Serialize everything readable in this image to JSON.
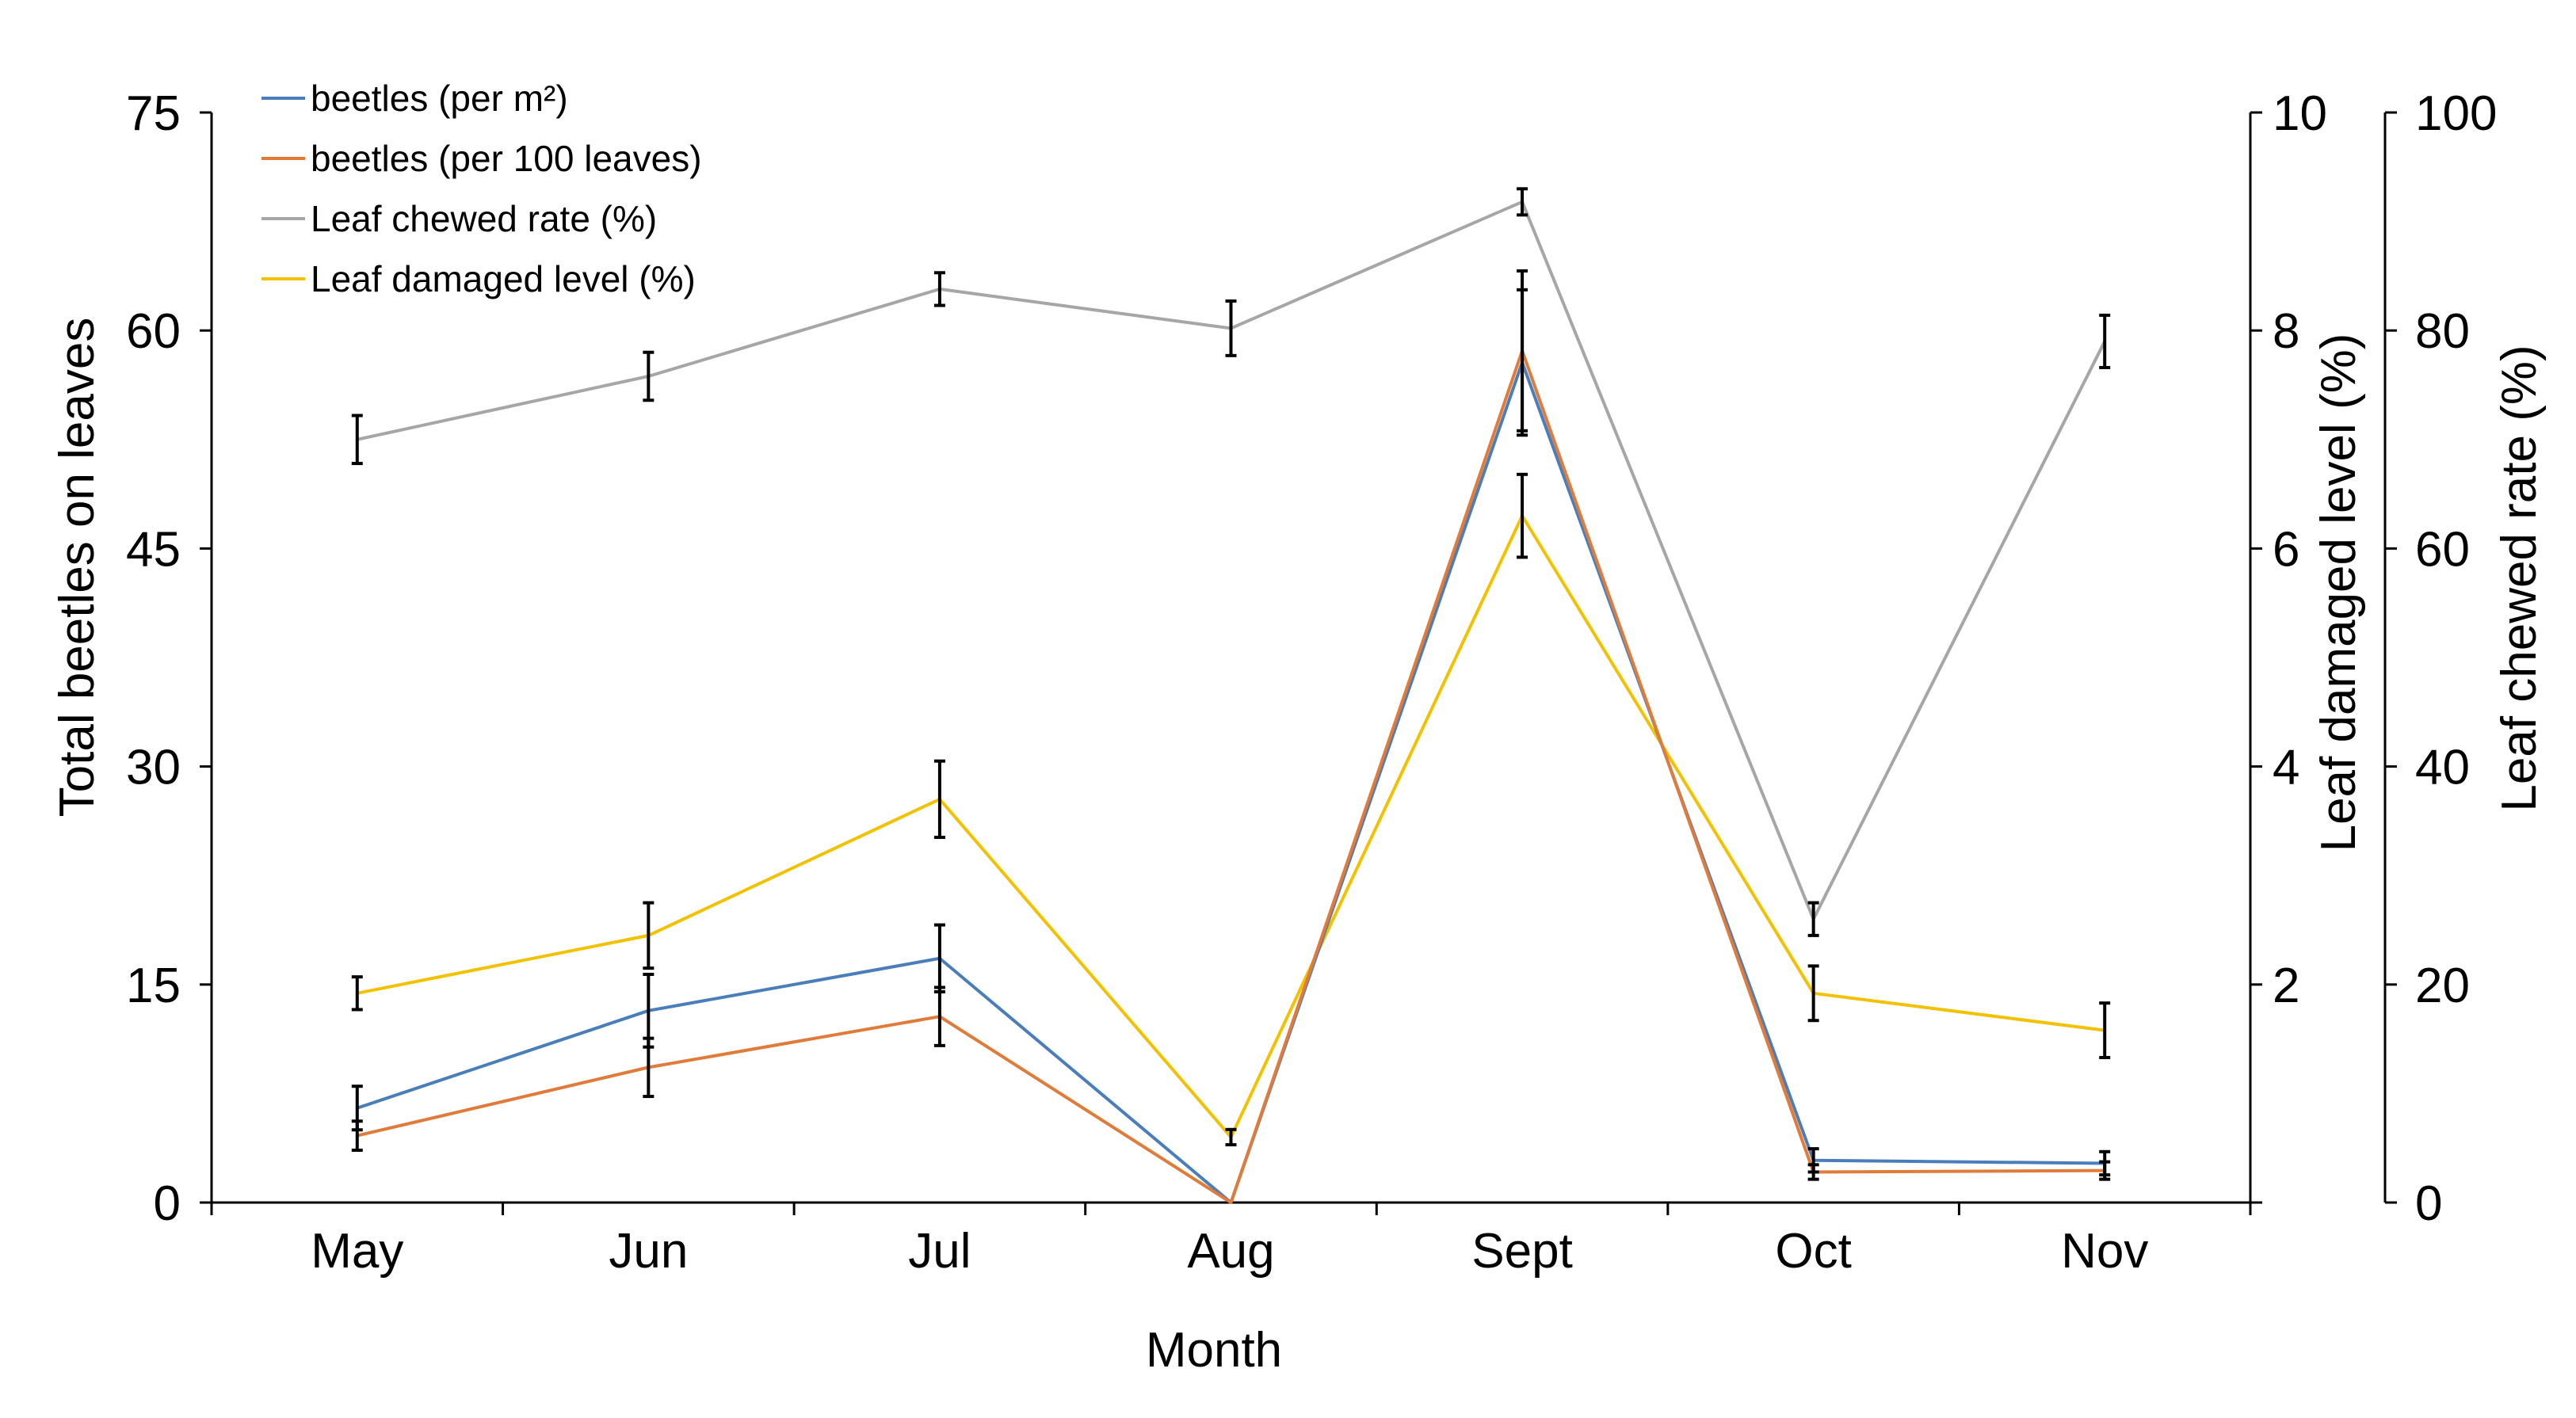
{
  "chart_data": {
    "type": "line",
    "title": "",
    "xlabel": "Month",
    "ylabel": "Total beetles on leaves",
    "y2label": "Leaf damaged level (%)",
    "y3label": "Leaf chewed rate (%)",
    "categories": [
      "May",
      "Jun",
      "Jul",
      "Aug",
      "Sept",
      "Oct",
      "Nov"
    ],
    "ylim": [
      0,
      75
    ],
    "y2lim": [
      0,
      10
    ],
    "y3lim": [
      0,
      100
    ],
    "yticks": [
      "0",
      "15",
      "30",
      "45",
      "60",
      "75"
    ],
    "y2ticks": [
      "",
      "2",
      "4",
      "6",
      "8",
      "10"
    ],
    "y3ticks": [
      "0",
      "20",
      "40",
      "60",
      "80",
      "100"
    ],
    "legend_position": "top-left",
    "series": [
      {
        "name": "beetles (per m²)",
        "axis": "left",
        "color": "#4a7ebb",
        "values": [
          6.5,
          13.2,
          16.8,
          0,
          57.8,
          2.9,
          2.7
        ],
        "err": [
          1.5,
          2.5,
          2.3,
          0,
          5,
          0.8,
          0.8
        ]
      },
      {
        "name": "beetles (per 100 leaves)",
        "axis": "left",
        "color": "#e07b39",
        "values": [
          4.6,
          9.3,
          12.8,
          0,
          58.6,
          2.1,
          2.2
        ],
        "err": [
          1,
          2,
          2,
          0,
          5.5,
          0.5,
          0.6
        ]
      },
      {
        "name": "Leaf chewed rate (%)",
        "axis": "right2",
        "color": "#a6a6a6",
        "values": [
          70,
          75.8,
          83.8,
          80.2,
          91.8,
          26,
          79
        ],
        "err": [
          2.2,
          2.2,
          1.5,
          2.5,
          1.2,
          1.5,
          2.4
        ]
      },
      {
        "name": "Leaf damaged level (%)",
        "axis": "right1",
        "color": "#f2c200",
        "values": [
          1.92,
          2.45,
          3.7,
          0.6,
          6.3,
          1.92,
          1.58
        ],
        "err": [
          0.15,
          0.3,
          0.35,
          0.07,
          0.38,
          0.25,
          0.25
        ]
      }
    ]
  }
}
